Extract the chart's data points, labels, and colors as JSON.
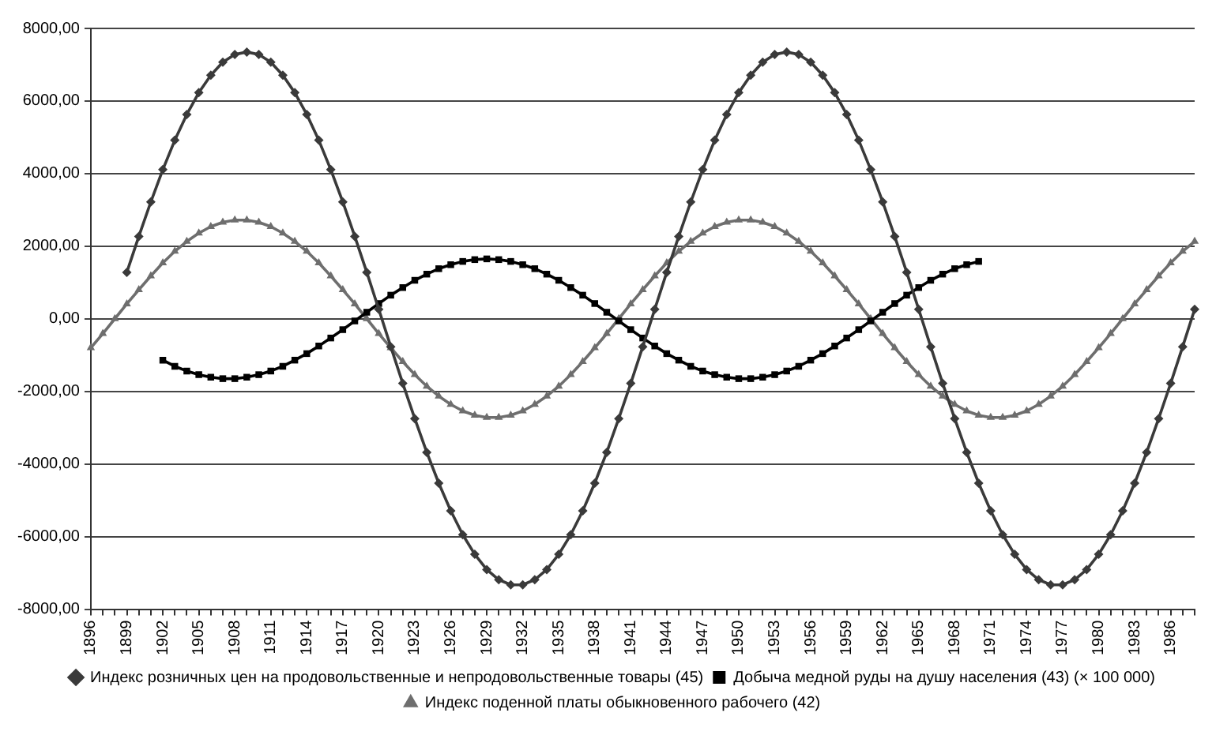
{
  "chart_data": {
    "type": "line",
    "categories": [
      "1896",
      null,
      null,
      "1899",
      null,
      null,
      "1902",
      null,
      null,
      "1905",
      null,
      null,
      "1908",
      null,
      null,
      "1911",
      null,
      null,
      "1914",
      null,
      null,
      "1917",
      null,
      null,
      "1920",
      null,
      null,
      "1923",
      null,
      null,
      "1926",
      null,
      null,
      "1929",
      null,
      null,
      "1932",
      null,
      null,
      "1935",
      null,
      null,
      "1938",
      null,
      null,
      "1941",
      null,
      null,
      "1944",
      null,
      null,
      "1947",
      null,
      null,
      "1950",
      null,
      null,
      "1953",
      null,
      null,
      "1956",
      null,
      null,
      "1959",
      null,
      null,
      "1962",
      null,
      null,
      "1965",
      null,
      null,
      "1968",
      null,
      null,
      "1971",
      null,
      null,
      "1974",
      null,
      null,
      "1977",
      null,
      null,
      "1980",
      null,
      null,
      "1983",
      null,
      null,
      "1986",
      null,
      null
    ],
    "series": [
      {
        "name": "Индекс розничных цен на продовольственные и непродовольственные товары (45)",
        "color": "#3a3a3a",
        "marker": "diamond",
        "values": [
          null,
          null,
          null,
          1280,
          2270,
          3220,
          4110,
          4920,
          5630,
          6230,
          6710,
          7070,
          7280,
          7350,
          7280,
          7070,
          6710,
          6230,
          5630,
          4920,
          4110,
          3220,
          2270,
          1280,
          260,
          -770,
          -1780,
          -2750,
          -3680,
          -4530,
          -5290,
          -5950,
          -6490,
          -6910,
          -7190,
          -7330,
          -7330,
          -7190,
          -6910,
          -6490,
          -5950,
          -5290,
          -4530,
          -3680,
          -2750,
          -1780,
          -770,
          260,
          1280,
          2270,
          3220,
          4110,
          4920,
          5630,
          6230,
          6710,
          7070,
          7280,
          7350,
          7280,
          7070,
          6710,
          6230,
          5630,
          4920,
          4110,
          3220,
          2270,
          1280,
          260,
          -770,
          -1780,
          -2750,
          -3680,
          -4530,
          -5290,
          -5950,
          -6490,
          -6910,
          -7190,
          -7330,
          -7330,
          -7190,
          -6910,
          -6490,
          -5950,
          -5290,
          -4530,
          -3680,
          -2750,
          -1780,
          -770,
          260
        ]
      },
      {
        "name": "Добыча медной руды на душу населения (43) (× 100 000)",
        "color": "#000000",
        "marker": "square",
        "values": [
          null,
          null,
          null,
          null,
          null,
          null,
          -1140,
          -1310,
          -1440,
          -1540,
          -1610,
          -1650,
          -1650,
          -1610,
          -1540,
          -1440,
          -1310,
          -1140,
          -960,
          -750,
          -530,
          -300,
          -60,
          180,
          420,
          650,
          860,
          1060,
          1230,
          1380,
          1490,
          1580,
          1630,
          1650,
          1630,
          1580,
          1490,
          1380,
          1230,
          1060,
          860,
          650,
          420,
          180,
          -60,
          -300,
          -530,
          -750,
          -960,
          -1140,
          -1310,
          -1440,
          -1540,
          -1610,
          -1650,
          -1650,
          -1610,
          -1540,
          -1440,
          -1310,
          -1140,
          -960,
          -750,
          -530,
          -300,
          -60,
          180,
          420,
          650,
          860,
          1060,
          1230,
          1380,
          1490,
          1580,
          null,
          null,
          null,
          null,
          null,
          null,
          null,
          null,
          null,
          null,
          null,
          null,
          null,
          null,
          null,
          null,
          null,
          null
        ]
      },
      {
        "name": "Индекс поденной платы обыкновенного рабочего (42)",
        "color": "#6e6e6e",
        "marker": "triangle",
        "values": [
          -800,
          -410,
          0,
          410,
          800,
          1180,
          1540,
          1860,
          2130,
          2360,
          2540,
          2660,
          2720,
          2720,
          2660,
          2540,
          2360,
          2130,
          1860,
          1540,
          1180,
          800,
          410,
          0,
          -410,
          -800,
          -1180,
          -1540,
          -1860,
          -2130,
          -2360,
          -2540,
          -2660,
          -2720,
          -2720,
          -2660,
          -2540,
          -2360,
          -2130,
          -1860,
          -1540,
          -1180,
          -800,
          -410,
          0,
          410,
          800,
          1180,
          1540,
          1860,
          2130,
          2360,
          2540,
          2660,
          2720,
          2720,
          2660,
          2540,
          2360,
          2130,
          1860,
          1540,
          1180,
          800,
          410,
          0,
          -410,
          -800,
          -1180,
          -1540,
          -1860,
          -2130,
          -2360,
          -2540,
          -2660,
          -2720,
          -2720,
          -2660,
          -2540,
          -2360,
          -2130,
          -1860,
          -1540,
          -1180,
          -800,
          -410,
          0,
          410,
          800,
          1180,
          1540,
          1860,
          2130
        ]
      }
    ],
    "ylim": [
      -8000,
      8000
    ],
    "yticks": [
      {
        "value": -8000,
        "label": "-8000,00"
      },
      {
        "value": -6000,
        "label": "-6000,00"
      },
      {
        "value": -4000,
        "label": "-4000,00"
      },
      {
        "value": -2000,
        "label": "-2000,00"
      },
      {
        "value": 0,
        "label": "0,00"
      },
      {
        "value": 2000,
        "label": "2000,00"
      },
      {
        "value": 4000,
        "label": "4000,00"
      },
      {
        "value": 6000,
        "label": "6000,00"
      },
      {
        "value": 8000,
        "label": "8000,00"
      }
    ],
    "grid": "y",
    "legend": "bottom",
    "line_style": "solid"
  }
}
